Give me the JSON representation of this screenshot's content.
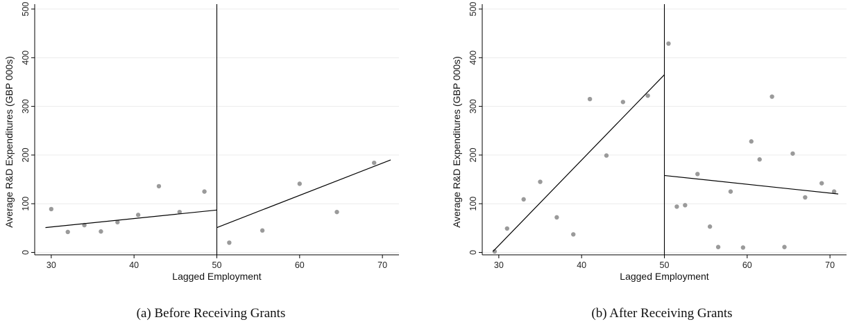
{
  "chart_data": [
    {
      "type": "scatter",
      "panel": "a",
      "caption": "(a) Before Receiving Grants",
      "xlabel": "Lagged Employment",
      "ylabel": "Average R&D Expenditures (GBP 000s)",
      "xlim": [
        28,
        72
      ],
      "ylim": [
        -5,
        510
      ],
      "xticks": [
        30,
        40,
        50,
        60,
        70
      ],
      "yticks": [
        0,
        100,
        200,
        300,
        400,
        500
      ],
      "grid": true,
      "cutoff": 50,
      "points": [
        {
          "x": 30,
          "y": 89
        },
        {
          "x": 32,
          "y": 42
        },
        {
          "x": 34,
          "y": 56
        },
        {
          "x": 36,
          "y": 43
        },
        {
          "x": 38,
          "y": 62
        },
        {
          "x": 40.5,
          "y": 77
        },
        {
          "x": 43,
          "y": 136
        },
        {
          "x": 45.5,
          "y": 83
        },
        {
          "x": 48.5,
          "y": 125
        },
        {
          "x": 51.5,
          "y": 20
        },
        {
          "x": 55.5,
          "y": 45
        },
        {
          "x": 60,
          "y": 141
        },
        {
          "x": 64.5,
          "y": 83
        },
        {
          "x": 69,
          "y": 184
        }
      ],
      "fit_lines": [
        {
          "x": [
            29.3,
            50
          ],
          "y": [
            51,
            87
          ]
        },
        {
          "x": [
            50,
            71
          ],
          "y": [
            51,
            190
          ]
        }
      ]
    },
    {
      "type": "scatter",
      "panel": "b",
      "caption": "(b) After Receiving Grants",
      "xlabel": "Lagged Employment",
      "ylabel": "Average R&D Expenditures (GBP 000s)",
      "xlim": [
        28,
        72
      ],
      "ylim": [
        -5,
        510
      ],
      "xticks": [
        30,
        40,
        50,
        60,
        70
      ],
      "yticks": [
        0,
        100,
        200,
        300,
        400,
        500
      ],
      "grid": true,
      "cutoff": 50,
      "points": [
        {
          "x": 29.5,
          "y": 2
        },
        {
          "x": 31,
          "y": 49
        },
        {
          "x": 33,
          "y": 109
        },
        {
          "x": 35,
          "y": 145
        },
        {
          "x": 37,
          "y": 72
        },
        {
          "x": 39,
          "y": 37
        },
        {
          "x": 41,
          "y": 315
        },
        {
          "x": 43,
          "y": 199
        },
        {
          "x": 45,
          "y": 309
        },
        {
          "x": 48,
          "y": 322
        },
        {
          "x": 50.5,
          "y": 429
        },
        {
          "x": 51.5,
          "y": 94
        },
        {
          "x": 52.5,
          "y": 97
        },
        {
          "x": 54,
          "y": 161
        },
        {
          "x": 55.5,
          "y": 53
        },
        {
          "x": 56.5,
          "y": 11
        },
        {
          "x": 58,
          "y": 125
        },
        {
          "x": 59.5,
          "y": 10
        },
        {
          "x": 60.5,
          "y": 228
        },
        {
          "x": 61.5,
          "y": 191
        },
        {
          "x": 63,
          "y": 320
        },
        {
          "x": 64.5,
          "y": 11
        },
        {
          "x": 65.5,
          "y": 203
        },
        {
          "x": 67,
          "y": 113
        },
        {
          "x": 69,
          "y": 142
        },
        {
          "x": 70.5,
          "y": 125
        }
      ],
      "fit_lines": [
        {
          "x": [
            29.3,
            50
          ],
          "y": [
            2,
            365
          ]
        },
        {
          "x": [
            50,
            71
          ],
          "y": [
            158,
            120
          ]
        }
      ]
    }
  ]
}
